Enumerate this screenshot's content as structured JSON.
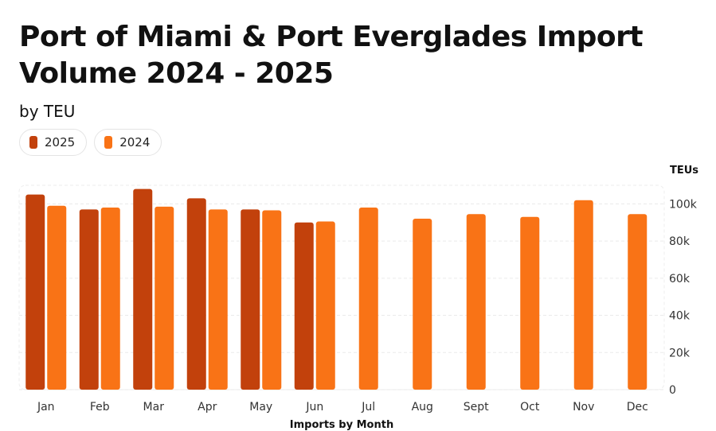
{
  "chart_data": {
    "type": "bar",
    "title": "Port of Miami & Port Everglades Import Volume 2024 - 2025",
    "subtitle": "by TEU",
    "xlabel": "Imports by Month",
    "ylabel": "TEUs",
    "ylim": [
      0,
      110000
    ],
    "yticks": [
      {
        "value": 0,
        "label": "0"
      },
      {
        "value": 20000,
        "label": "20k"
      },
      {
        "value": 40000,
        "label": "40k"
      },
      {
        "value": 60000,
        "label": "60k"
      },
      {
        "value": 80000,
        "label": "80k"
      },
      {
        "value": 100000,
        "label": "100k"
      }
    ],
    "categories": [
      "Jan",
      "Feb",
      "Mar",
      "Apr",
      "May",
      "Jun",
      "Jul",
      "Aug",
      "Sept",
      "Oct",
      "Nov",
      "Dec"
    ],
    "series": [
      {
        "name": "2025",
        "color": "#c2410c",
        "values": [
          105000,
          97000,
          108000,
          103000,
          97000,
          90000,
          null,
          null,
          null,
          null,
          null,
          null
        ]
      },
      {
        "name": "2024",
        "color": "#f97316",
        "values": [
          99000,
          98000,
          98500,
          97000,
          96500,
          90500,
          98000,
          92000,
          94500,
          93000,
          102000,
          94500
        ]
      }
    ],
    "legend": "top-left",
    "grid": true
  }
}
